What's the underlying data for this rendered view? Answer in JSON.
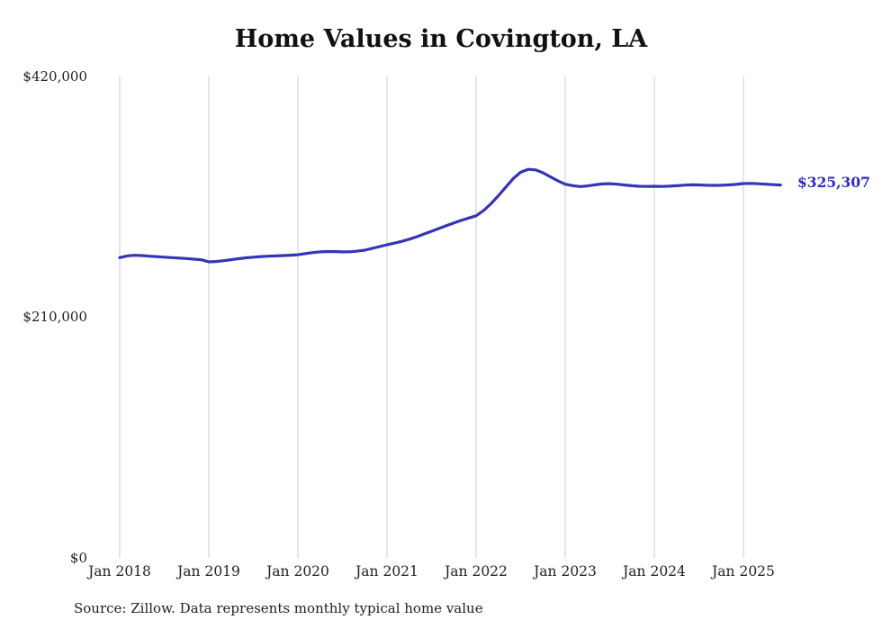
{
  "title": "Home Values in Covington, LA",
  "latest_value_label": "$325,307",
  "source": "Source: Zillow. Data represents monthly typical home value",
  "colors": {
    "line": "#3535b5",
    "latest_label": "#2b2bc0",
    "grid": "#cccccc",
    "text": "#222222"
  },
  "chart_data": {
    "type": "line",
    "title": "Home Values in Covington, LA",
    "series_name": "Monthly typical home value",
    "xlabel": "",
    "ylabel": "",
    "ylim": [
      0,
      420000
    ],
    "grid": "vertical-only",
    "legend": "none",
    "y_tick_labels": [
      "$420,000",
      "$210,000",
      "$0"
    ],
    "x_tick_labels": [
      "Jan 2018",
      "Jan 2019",
      "Jan 2020",
      "Jan 2021",
      "Jan 2022",
      "Jan 2023",
      "Jan 2024",
      "Jan 2025"
    ],
    "latest_value": 325307,
    "x": [
      "2018-01",
      "2018-02",
      "2018-03",
      "2018-04",
      "2018-05",
      "2018-06",
      "2018-07",
      "2018-08",
      "2018-09",
      "2018-10",
      "2018-11",
      "2018-12",
      "2019-01",
      "2019-02",
      "2019-03",
      "2019-04",
      "2019-05",
      "2019-06",
      "2019-07",
      "2019-08",
      "2019-09",
      "2019-10",
      "2019-11",
      "2019-12",
      "2020-01",
      "2020-02",
      "2020-03",
      "2020-04",
      "2020-05",
      "2020-06",
      "2020-07",
      "2020-08",
      "2020-09",
      "2020-10",
      "2020-11",
      "2020-12",
      "2021-01",
      "2021-02",
      "2021-03",
      "2021-04",
      "2021-05",
      "2021-06",
      "2021-07",
      "2021-08",
      "2021-09",
      "2021-10",
      "2021-11",
      "2021-12",
      "2022-01",
      "2022-02",
      "2022-03",
      "2022-04",
      "2022-05",
      "2022-06",
      "2022-07",
      "2022-08",
      "2022-09",
      "2022-10",
      "2022-11",
      "2022-12",
      "2023-01",
      "2023-02",
      "2023-03",
      "2023-04",
      "2023-05",
      "2023-06",
      "2023-07",
      "2023-08",
      "2023-09",
      "2023-10",
      "2023-11",
      "2023-12",
      "2024-01",
      "2024-02",
      "2024-03",
      "2024-04",
      "2024-05",
      "2024-06",
      "2024-07",
      "2024-08",
      "2024-09",
      "2024-10",
      "2024-11",
      "2024-12",
      "2025-01",
      "2025-02",
      "2025-03",
      "2025-04",
      "2025-05",
      "2025-06"
    ],
    "values": [
      262000,
      263500,
      264000,
      263800,
      263200,
      262800,
      262400,
      262000,
      261600,
      261200,
      260600,
      260100,
      258300,
      258600,
      259300,
      260200,
      261000,
      261800,
      262400,
      262900,
      263200,
      263500,
      263800,
      264100,
      264500,
      265500,
      266400,
      267000,
      267300,
      267200,
      267000,
      267100,
      267600,
      268500,
      270000,
      271600,
      273200,
      274600,
      276200,
      278100,
      280200,
      282600,
      285000,
      287400,
      289900,
      292300,
      294500,
      296500,
      298500,
      303000,
      309000,
      316000,
      323500,
      331000,
      336500,
      339000,
      338500,
      336000,
      332500,
      329000,
      326000,
      324800,
      324000,
      324500,
      325500,
      326300,
      326500,
      326000,
      325300,
      324700,
      324200,
      324100,
      324200,
      324100,
      324300,
      324700,
      325200,
      325500,
      325400,
      325100,
      325000,
      325100,
      325400,
      325900,
      326600,
      326700,
      326400,
      326000,
      325600,
      325307
    ]
  }
}
